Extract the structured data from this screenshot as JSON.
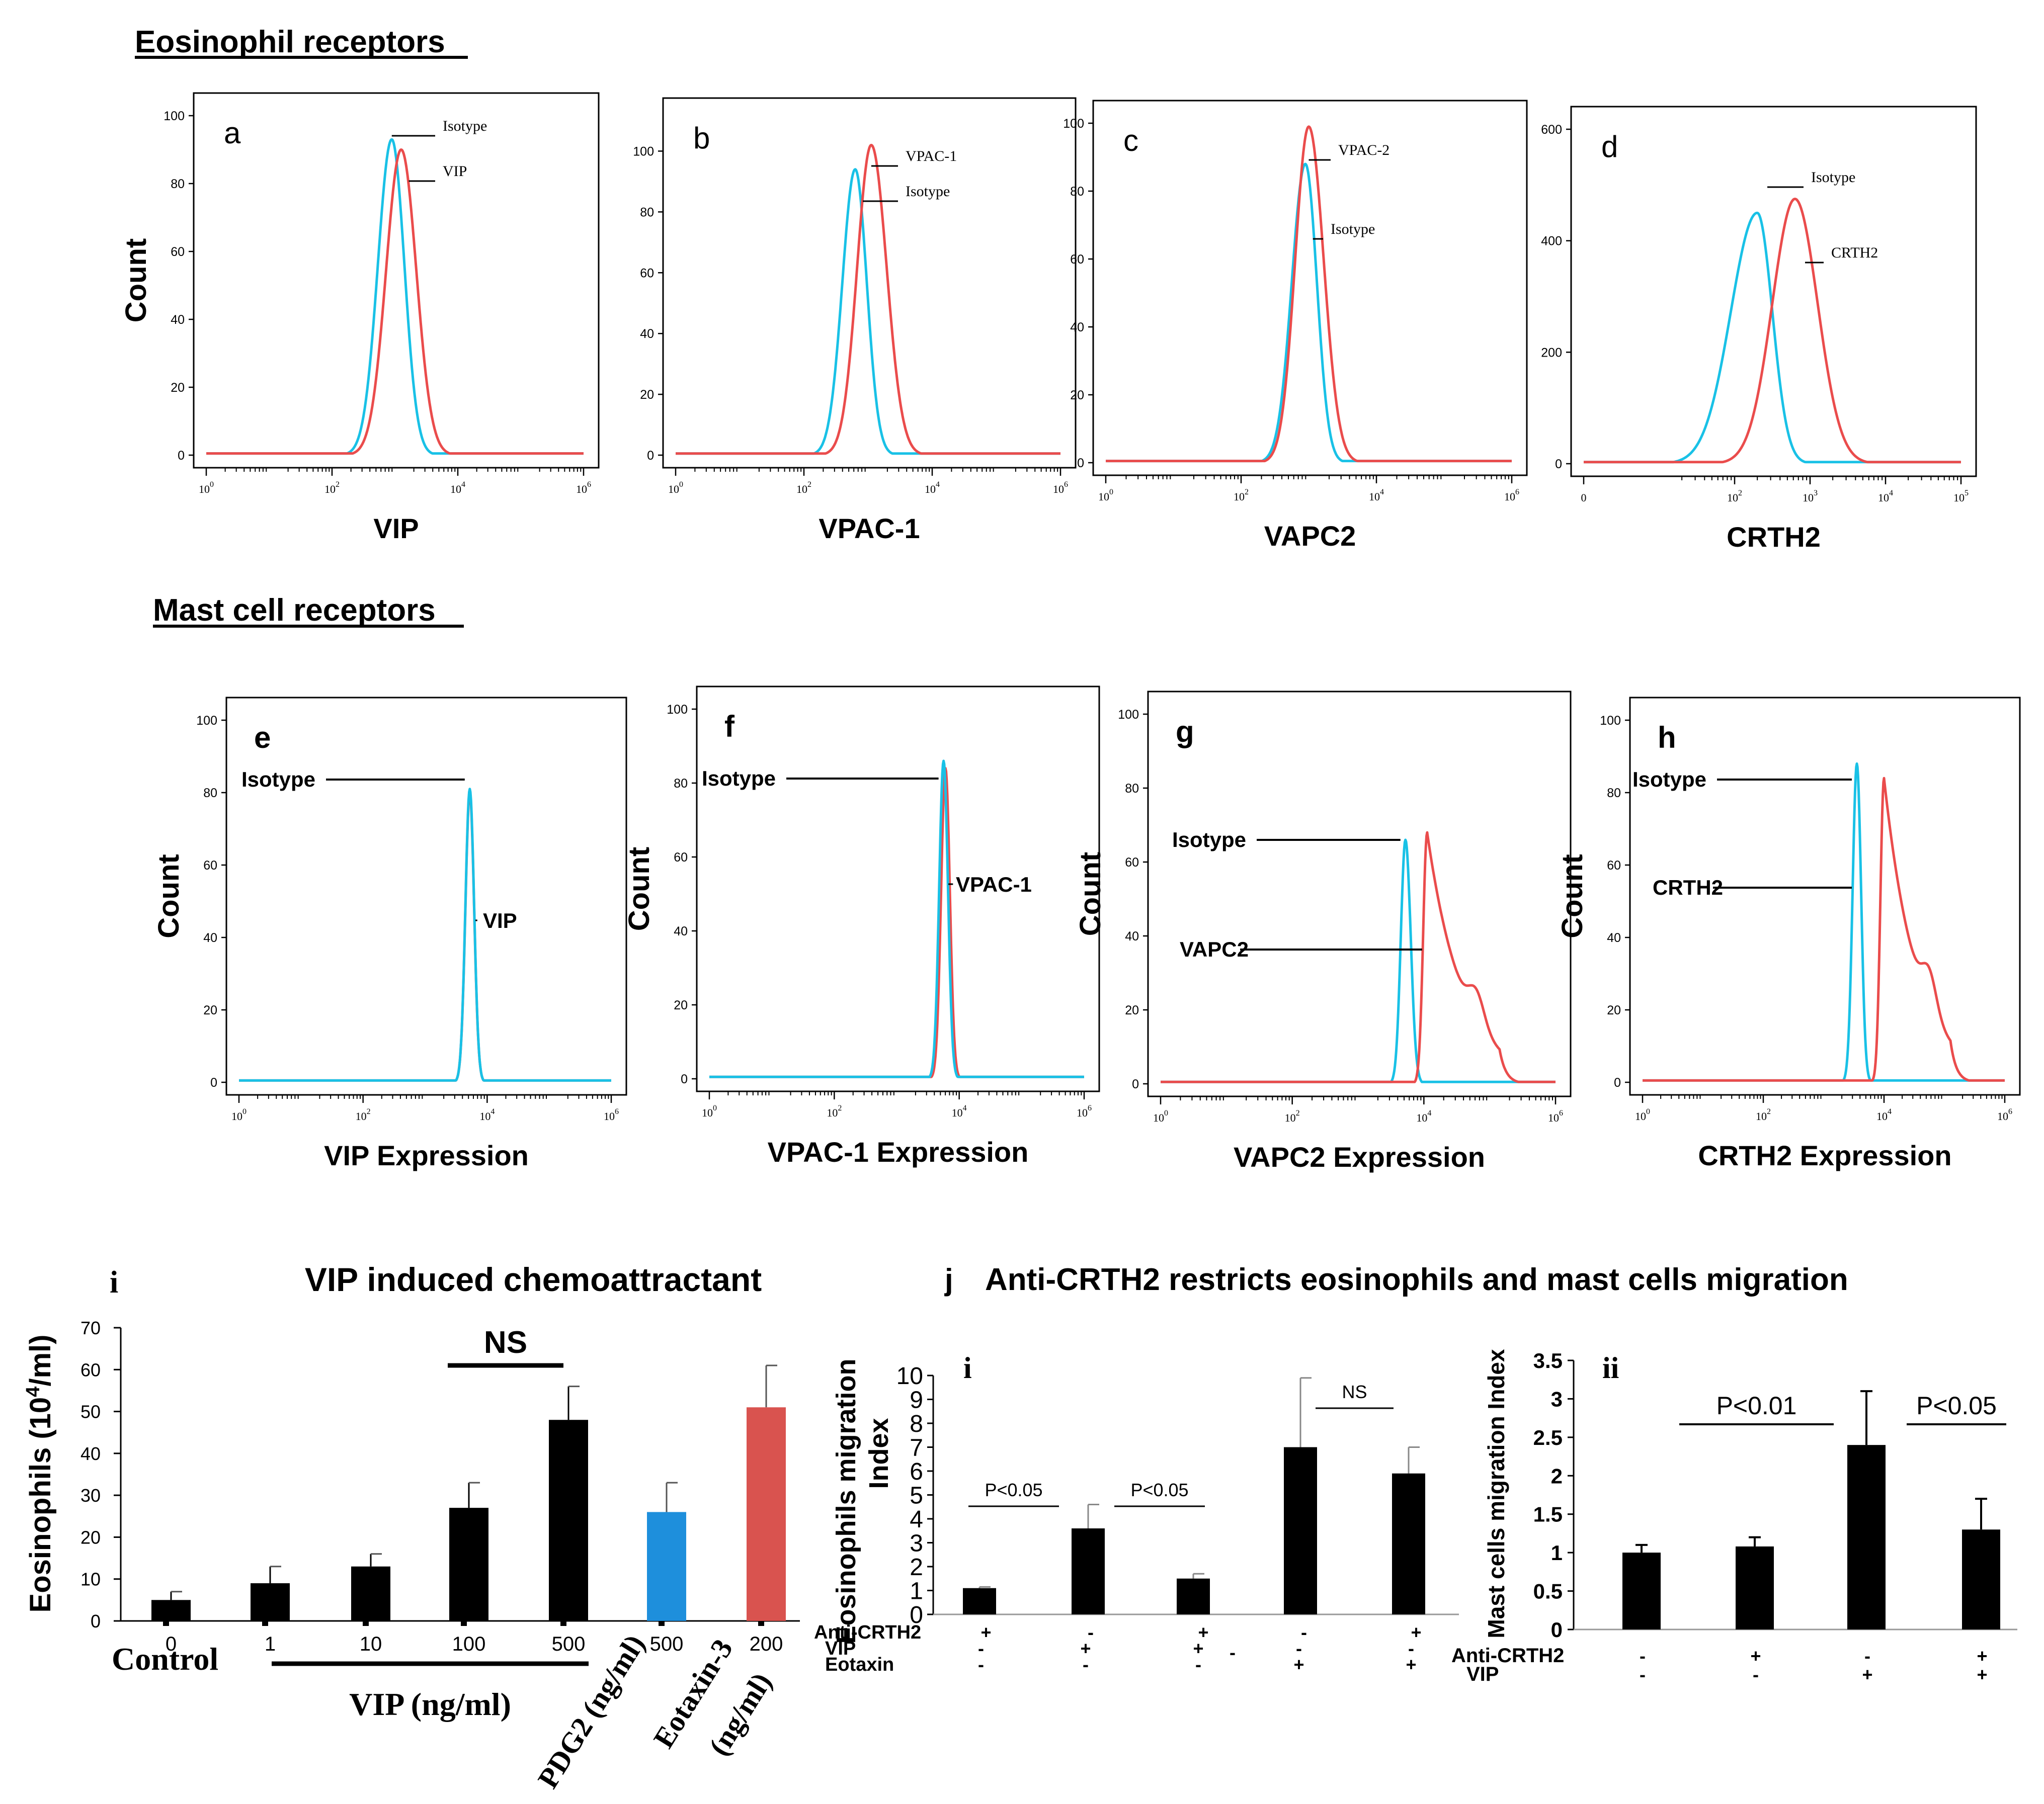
{
  "sections": {
    "eosinophil_title": "Eosinophil receptors",
    "mast_title": "Mast cell receptors"
  },
  "colors": {
    "isotype": "#19c1e6",
    "antibody": "#ea4c4c",
    "bar_black": "#000000",
    "bar_blue": "#1e8fdc",
    "bar_red": "#d9534f"
  },
  "chart_data": [
    {
      "id": "a",
      "type": "histogram",
      "letter": "a",
      "xlabel": "VIP",
      "ylabel": "Count",
      "yticks": [
        "0",
        "20",
        "40",
        "60",
        "80",
        "100"
      ],
      "ymax": 100,
      "xticks": [
        "10^0",
        "10^2",
        "10^4",
        "10^6"
      ],
      "xdecades": [
        0,
        6
      ],
      "series": [
        {
          "name": "Isotype",
          "color": "isotype",
          "peak_log10": 2.95,
          "peak": 93,
          "width_left": 0.22,
          "width_right": 0.2
        },
        {
          "name": "VIP",
          "color": "antibody",
          "peak_log10": 3.1,
          "peak": 90,
          "width_left": 0.24,
          "width_right": 0.24
        }
      ],
      "labels": [
        {
          "text": "Isotype",
          "series": 0
        },
        {
          "text": "VIP",
          "series": 1
        }
      ]
    },
    {
      "id": "b",
      "type": "histogram",
      "letter": "b",
      "xlabel": "VPAC-1",
      "ylabel": "",
      "yticks": [
        "0",
        "20",
        "40",
        "60",
        "80",
        "100"
      ],
      "ymax": 110,
      "xticks": [
        "10^0",
        "10^2",
        "10^4",
        "10^6"
      ],
      "xdecades": [
        0,
        6
      ],
      "series": [
        {
          "name": "Isotype",
          "color": "isotype",
          "peak_log10": 2.8,
          "peak": 94,
          "width_left": 0.2,
          "width_right": 0.18
        },
        {
          "name": "VPAC-1",
          "color": "antibody",
          "peak_log10": 3.05,
          "peak": 102,
          "width_left": 0.22,
          "width_right": 0.24
        }
      ],
      "labels": [
        {
          "text": "VPAC-1",
          "series": 1
        },
        {
          "text": "Isotype",
          "series": 0
        }
      ]
    },
    {
      "id": "c",
      "type": "histogram",
      "letter": "c",
      "xlabel": "VAPC2",
      "ylabel": "",
      "yticks": [
        "0",
        "20",
        "40",
        "60",
        "80",
        "100"
      ],
      "ymax": 100,
      "xticks": [
        "10^0",
        "10^2",
        "10^4",
        "10^6"
      ],
      "xdecades": [
        0,
        6
      ],
      "series": [
        {
          "name": "Isotype",
          "color": "isotype",
          "peak_log10": 2.95,
          "peak": 88,
          "width_left": 0.2,
          "width_right": 0.17
        },
        {
          "name": "VPAC-2",
          "color": "antibody",
          "peak_log10": 3.0,
          "peak": 99,
          "width_left": 0.2,
          "width_right": 0.22
        }
      ],
      "labels": [
        {
          "text": "VPAC-2",
          "series": 1
        },
        {
          "text": "Isotype",
          "series": 0
        }
      ]
    },
    {
      "id": "d",
      "type": "histogram",
      "letter": "d",
      "xlabel": "CRTH2",
      "ylabel": "",
      "yticks": [
        "0",
        "200",
        "400",
        "600"
      ],
      "ymax": 600,
      "xticks": [
        "0",
        "10^2",
        "10^3",
        "10^4",
        "10^5"
      ],
      "xdecades": [
        1,
        5
      ],
      "series": [
        {
          "name": "Isotype",
          "color": "isotype",
          "peak_log10": 2.3,
          "peak": 450,
          "width_left": 0.35,
          "width_right": 0.2
        },
        {
          "name": "CRTH2",
          "color": "antibody",
          "peak_log10": 2.8,
          "peak": 475,
          "width_left": 0.3,
          "width_right": 0.3
        }
      ],
      "labels": [
        {
          "text": "Isotype",
          "series": 0
        },
        {
          "text": "CRTH2",
          "series": 1
        }
      ]
    },
    {
      "id": "e",
      "type": "histogram",
      "letter": "e",
      "xlabel": "VIP Expression",
      "ylabel": "Count",
      "yticks": [
        "0",
        "20",
        "40",
        "60",
        "80",
        "100"
      ],
      "ymax": 100,
      "xticks": [
        "10^0",
        "10^2",
        "10^4",
        "10^6"
      ],
      "xdecades": [
        0,
        6
      ],
      "series": [
        {
          "name": "VIP",
          "color": "antibody",
          "peak_log10": 3.72,
          "peak": 80,
          "width_left": 0.07,
          "width_right": 0.07
        },
        {
          "name": "Isotype",
          "color": "isotype",
          "peak_log10": 3.72,
          "peak": 81,
          "width_left": 0.07,
          "width_right": 0.07
        }
      ],
      "labels": [
        {
          "text": "Isotype",
          "series": 1
        },
        {
          "text": "VIP",
          "series": 0
        }
      ]
    },
    {
      "id": "f",
      "type": "histogram",
      "letter": "f",
      "xlabel": "VPAC-1 Expression",
      "ylabel": "Count",
      "yticks": [
        "0",
        "20",
        "40",
        "60",
        "80",
        "100"
      ],
      "ymax": 100,
      "xticks": [
        "10^0",
        "10^2",
        "10^4",
        "10^6"
      ],
      "xdecades": [
        0,
        6
      ],
      "series": [
        {
          "name": "VPAC-1",
          "color": "antibody",
          "peak_log10": 3.78,
          "peak": 84,
          "width_left": 0.07,
          "width_right": 0.07
        },
        {
          "name": "Isotype",
          "color": "isotype",
          "peak_log10": 3.75,
          "peak": 86,
          "width_left": 0.07,
          "width_right": 0.07
        }
      ],
      "labels": [
        {
          "text": "Isotype",
          "series": 1
        },
        {
          "text": "VPAC-1",
          "series": 0
        }
      ]
    },
    {
      "id": "g",
      "type": "histogram",
      "letter": "g",
      "xlabel": "VAPC2 Expression",
      "ylabel": "Count",
      "yticks": [
        "0",
        "20",
        "40",
        "60",
        "80",
        "100"
      ],
      "ymax": 100,
      "xticks": [
        "10^0",
        "10^2",
        "10^4",
        "10^6"
      ],
      "xdecades": [
        0,
        6
      ],
      "series": [
        {
          "name": "Isotype",
          "color": "isotype",
          "peak_log10": 3.72,
          "peak": 66,
          "width_left": 0.07,
          "width_right": 0.08
        },
        {
          "name": "VAPC2",
          "color": "antibody",
          "peak_log10": 4.05,
          "peak": 68,
          "tail": true
        },
        {
          "name": "_",
          "color": "antibody",
          "hidden": true
        }
      ],
      "labels": [
        {
          "text": "Isotype",
          "series": 0
        },
        {
          "text": "VAPC2",
          "series": 1
        }
      ]
    },
    {
      "id": "h",
      "type": "histogram",
      "letter": "h",
      "xlabel": "CRTH2 Expression",
      "ylabel": "Count",
      "yticks": [
        "0",
        "20",
        "40",
        "60",
        "80",
        "100"
      ],
      "ymax": 100,
      "xticks": [
        "10^0",
        "10^2",
        "10^4",
        "10^6"
      ],
      "xdecades": [
        0,
        6
      ],
      "series": [
        {
          "name": "Isotype",
          "color": "isotype",
          "peak_log10": 3.55,
          "peak": 88,
          "width_left": 0.07,
          "width_right": 0.07
        },
        {
          "name": "CRTH2",
          "color": "antibody",
          "peak_log10": 4.0,
          "peak": 84,
          "tail": true
        }
      ],
      "labels": [
        {
          "text": "Isotype",
          "series": 0
        },
        {
          "text": "CRTH2",
          "series": 0
        }
      ]
    },
    {
      "id": "i",
      "type": "bar",
      "letter": "i",
      "title": "VIP induced chemoattractant",
      "ylabel": "Eosinophils (10",
      "ylabel_sup": "4",
      "ylabel_end": "/ml)",
      "ylim": [
        0,
        70
      ],
      "yticks": [
        "0",
        "10",
        "20",
        "30",
        "40",
        "50",
        "60",
        "70"
      ],
      "categories": [
        "0",
        "1",
        "10",
        "100",
        "500",
        "500",
        "200"
      ],
      "values": [
        5,
        9,
        13,
        27,
        48,
        26,
        51
      ],
      "errors": [
        2,
        4,
        3,
        6,
        8,
        7,
        10
      ],
      "bar_colors": [
        "bar_black",
        "bar_black",
        "bar_black",
        "bar_black",
        "bar_black",
        "bar_blue",
        "bar_red"
      ],
      "group_labels": [
        "Control",
        "VIP (ng/ml)",
        "PDG2 (ng/ml)",
        "Eotaxin-3",
        "(ng/ml)"
      ],
      "annotation": "NS"
    },
    {
      "id": "j",
      "type": "bar",
      "letter": "j",
      "title": "Anti-CRTH2 restricts eosinophils and mast cells migration",
      "panels": [
        {
          "letter": "i",
          "ylabel": "Eosinophils migration",
          "ylabel2": "Index",
          "ylim": [
            0,
            10
          ],
          "yticks": [
            "0",
            "1",
            "2",
            "3",
            "4",
            "5",
            "6",
            "7",
            "8",
            "9",
            "10"
          ],
          "values": [
            1.1,
            3.6,
            1.5,
            7.0,
            5.9
          ],
          "errors": [
            0.05,
            1.0,
            0.2,
            2.9,
            1.1
          ],
          "row_labels": [
            "Anti-CRTH2",
            "VIP",
            "Eotaxin"
          ],
          "signs": [
            [
              "+",
              "-",
              "+",
              "-",
              "+"
            ],
            [
              "-",
              "+",
              "+",
              "-",
              "-"
            ],
            [
              "-",
              "-",
              "-",
              "+",
              "+"
            ]
          ],
          "extra_minus": "-",
          "brackets": [
            {
              "text": "P<0.05",
              "from": 0,
              "to": 1
            },
            {
              "text": "P<0.05",
              "from": 1,
              "to": 2
            },
            {
              "text": "NS",
              "from": 3,
              "to": 4
            }
          ]
        },
        {
          "letter": "ii",
          "ylabel": "Mast cells migration Index",
          "ylim": [
            0,
            3.5
          ],
          "yticks": [
            "0",
            "0.5",
            "1",
            "1.5",
            "2",
            "2.5",
            "3",
            "3.5"
          ],
          "values": [
            1.0,
            1.08,
            2.4,
            1.3
          ],
          "errors": [
            0.1,
            0.12,
            0.7,
            0.4
          ],
          "row_labels": [
            "Anti-CRTH2",
            "VIP"
          ],
          "signs": [
            [
              "-",
              "+",
              "-",
              "+"
            ],
            [
              "-",
              "-",
              "+",
              "+"
            ]
          ],
          "brackets": [
            {
              "text": "P<0.01",
              "from": 0,
              "to": 2
            },
            {
              "text": "P<0.05",
              "from": 2,
              "to": 3
            }
          ]
        }
      ]
    }
  ]
}
